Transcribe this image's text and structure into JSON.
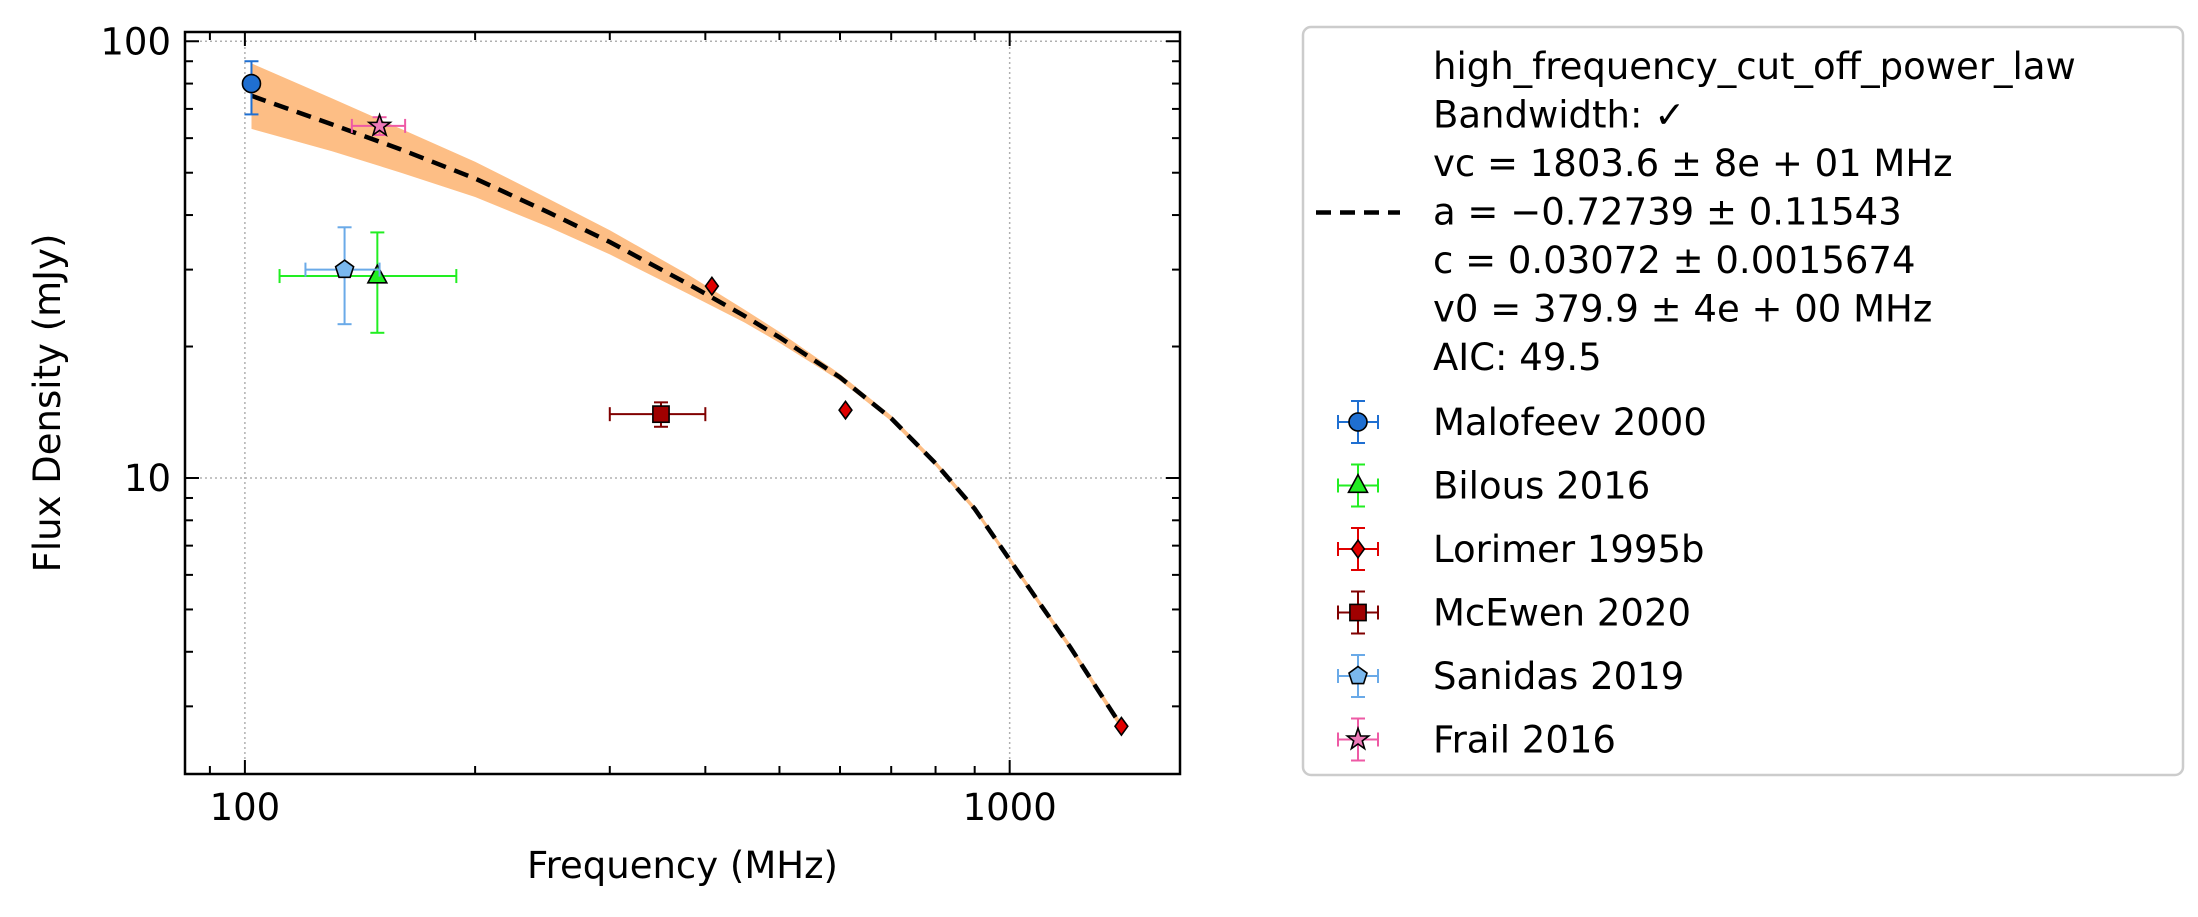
{
  "chart_data": {
    "type": "scatter",
    "xlabel": "Frequency (MHz)",
    "ylabel": "Flux Density (mJy)",
    "xscale": "log",
    "yscale": "log",
    "xlim": [
      83.5,
      1670
    ],
    "ylim": [
      2.1,
      105
    ],
    "xticks": [
      {
        "value": 100,
        "label": "100"
      },
      {
        "value": 1000,
        "label": "1000"
      }
    ],
    "yticks": [
      {
        "value": 10,
        "label": "10"
      },
      {
        "value": 100,
        "label": "100"
      }
    ],
    "grid": true,
    "legend_position": "outside-right",
    "fit": {
      "model": "high_frequency_cut_off_power_law",
      "legend_lines": [
        "high_frequency_cut_off_power_law",
        "Bandwidth: ✓",
        "vc = 1803.6 ± 8e + 01 MHz",
        "a = −0.72739 ± 0.11543",
        "c = 0.03072 ± 0.0015674",
        "v0 = 379.9 ± 4e + 00 MHz",
        "AIC: 49.5"
      ],
      "line_color": "#000000",
      "band_color": "#fdbe85",
      "curve": {
        "x": [
          102,
          130,
          160,
          200,
          250,
          300,
          380,
          450,
          500,
          600,
          700,
          800,
          900,
          1000,
          1100,
          1200,
          1300,
          1410
        ],
        "y": [
          75,
          64.5,
          56.5,
          48.5,
          40.5,
          34.7,
          27.8,
          23.5,
          21.0,
          17.0,
          13.7,
          10.8,
          8.5,
          6.5,
          5.1,
          4.1,
          3.3,
          2.65
        ]
      },
      "band_upper": {
        "x": [
          102,
          130,
          160,
          200,
          250,
          300,
          380,
          450,
          500,
          600,
          700,
          800,
          900,
          1000,
          1100,
          1200,
          1300,
          1410
        ],
        "y": [
          89,
          74,
          63,
          53,
          43.5,
          36.9,
          29.2,
          24.3,
          21.6,
          17.3,
          13.9,
          10.95,
          8.62,
          6.6,
          5.18,
          4.17,
          3.36,
          2.7
        ]
      },
      "band_lower": {
        "x": [
          102,
          130,
          160,
          200,
          250,
          300,
          380,
          450,
          500,
          600,
          700,
          800,
          900,
          1000,
          1100,
          1200,
          1300,
          1410
        ],
        "y": [
          63,
          56,
          50,
          44,
          37.5,
          32.5,
          26.4,
          22.7,
          20.4,
          16.7,
          13.5,
          10.65,
          8.38,
          6.4,
          5.02,
          4.03,
          3.24,
          2.6
        ]
      }
    },
    "series": [
      {
        "name": "Malofeev 2000",
        "marker": "circle",
        "color": "#1f6fd1",
        "ecolor": "#1f6fd1",
        "points": [
          {
            "x": 102,
            "y": 80,
            "xerr": [
              0,
              0
            ],
            "yerr": [
              12,
              10
            ]
          }
        ]
      },
      {
        "name": "Bilous 2016",
        "marker": "triangle",
        "color": "#22ee22",
        "ecolor": "#22ee22",
        "points": [
          {
            "x": 149,
            "y": 29,
            "xerr": [
              38,
              40
            ],
            "yerr": [
              7.5,
              7.5
            ]
          }
        ]
      },
      {
        "name": "Lorimer 1995b",
        "marker": "diamond",
        "color": "#e00000",
        "ecolor": "#e00000",
        "points": [
          {
            "x": 408,
            "y": 27.5,
            "xerr": [
              0,
              0
            ],
            "yerr": [
              0,
              0
            ]
          },
          {
            "x": 610,
            "y": 14.3,
            "xerr": [
              0,
              0
            ],
            "yerr": [
              0,
              0
            ]
          },
          {
            "x": 1400,
            "y": 2.7,
            "xerr": [
              0,
              0
            ],
            "yerr": [
              0,
              0
            ]
          }
        ]
      },
      {
        "name": "McEwen 2020",
        "marker": "square",
        "color": "#a00000",
        "ecolor": "#800000",
        "points": [
          {
            "x": 350,
            "y": 14,
            "xerr": [
              50,
              50
            ],
            "yerr": [
              0.9,
              0.9
            ]
          }
        ]
      },
      {
        "name": "Sanidas 2019",
        "marker": "pentagon",
        "color": "#7ab8ee",
        "ecolor": "#6aaae8",
        "points": [
          {
            "x": 135,
            "y": 30,
            "xerr": [
              15,
              15
            ],
            "yerr": [
              7.5,
              7.5
            ]
          }
        ]
      },
      {
        "name": "Frail 2016",
        "marker": "star",
        "color": "#ee7ab8",
        "ecolor": "#ee5aa5",
        "points": [
          {
            "x": 150,
            "y": 64,
            "xerr": [
              12,
              12
            ],
            "yerr": [
              3,
              3
            ]
          }
        ]
      }
    ]
  }
}
